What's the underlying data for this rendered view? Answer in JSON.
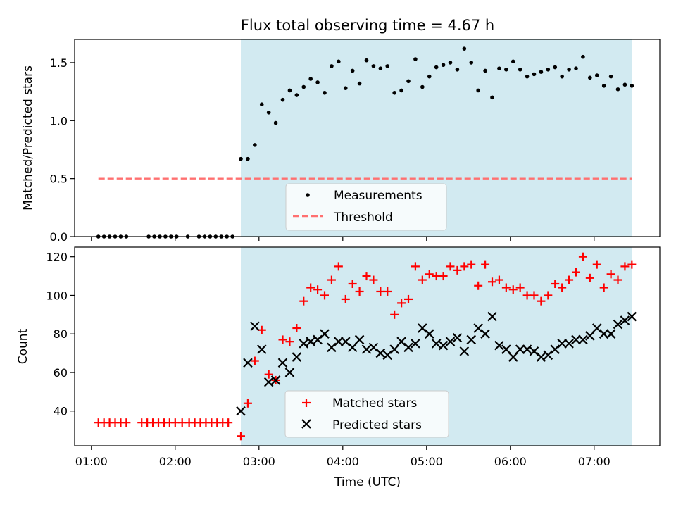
{
  "chart_data": [
    {
      "type": "scatter",
      "title": "Flux total observing time = 4.67 h",
      "xlabel": "",
      "ylabel": "Matched/Predicted stars",
      "ylim": [
        0,
        1.7
      ],
      "yticks": [
        "0.0",
        "0.5",
        "1.0",
        "1.5"
      ],
      "ytick_values": [
        0,
        0.5,
        1.0,
        1.5
      ],
      "observing_window": {
        "start": "02:47",
        "end": "07:27",
        "color": "#add8e6"
      },
      "legend": {
        "location": "lower-center",
        "entries": [
          "Measurements",
          "Threshold"
        ]
      },
      "threshold": {
        "name": "Threshold",
        "value": 0.5,
        "start": "01:05",
        "end": "07:27",
        "color": "#ff7070",
        "style": "dashed"
      },
      "series": [
        {
          "name": "Measurements",
          "color": "#000000",
          "x": [
            "01:05",
            "01:09",
            "01:13",
            "01:17",
            "01:21",
            "01:25",
            "01:41",
            "01:45",
            "01:49",
            "01:53",
            "01:57",
            "02:01",
            "02:09",
            "02:17",
            "02:21",
            "02:25",
            "02:29",
            "02:33",
            "02:37",
            "02:41",
            "02:47",
            "02:52",
            "02:57",
            "03:02",
            "03:07",
            "03:12",
            "03:17",
            "03:22",
            "03:27",
            "03:32",
            "03:37",
            "03:42",
            "03:47",
            "03:52",
            "03:57",
            "04:02",
            "04:07",
            "04:12",
            "04:17",
            "04:22",
            "04:27",
            "04:32",
            "04:37",
            "04:42",
            "04:47",
            "04:52",
            "04:57",
            "05:02",
            "05:07",
            "05:12",
            "05:17",
            "05:22",
            "05:27",
            "05:32",
            "05:37",
            "05:42",
            "05:47",
            "05:52",
            "05:57",
            "06:02",
            "06:07",
            "06:12",
            "06:17",
            "06:22",
            "06:27",
            "06:32",
            "06:37",
            "06:42",
            "06:47",
            "06:52",
            "06:57",
            "07:02",
            "07:07",
            "07:12",
            "07:17",
            "07:22",
            "07:27"
          ],
          "y": [
            0,
            0,
            0,
            0,
            0,
            0,
            0,
            0,
            0,
            0,
            0,
            0,
            0,
            0,
            0,
            0,
            0,
            0,
            0,
            0,
            0.67,
            0.67,
            0.79,
            1.14,
            1.07,
            0.98,
            1.18,
            1.26,
            1.22,
            1.29,
            1.36,
            1.33,
            1.24,
            1.47,
            1.51,
            1.28,
            1.43,
            1.32,
            1.52,
            1.47,
            1.45,
            1.47,
            1.24,
            1.26,
            1.34,
            1.53,
            1.29,
            1.38,
            1.46,
            1.48,
            1.5,
            1.44,
            1.62,
            1.5,
            1.26,
            1.43,
            1.2,
            1.45,
            1.44,
            1.51,
            1.44,
            1.38,
            1.4,
            1.42,
            1.44,
            1.46,
            1.38,
            1.44,
            1.45,
            1.55,
            1.37,
            1.39,
            1.3,
            1.38,
            1.27,
            1.31,
            1.3
          ]
        }
      ]
    },
    {
      "type": "scatter",
      "xlabel": "Time (UTC)",
      "ylabel": "Count",
      "ylim": [
        22,
        125
      ],
      "yticks": [
        "40",
        "60",
        "80",
        "100",
        "120"
      ],
      "ytick_values": [
        40,
        60,
        80,
        100,
        120
      ],
      "xlim": [
        "00:48",
        "07:47"
      ],
      "xticks": [
        "01:00",
        "02:00",
        "03:00",
        "04:00",
        "05:00",
        "06:00",
        "07:00"
      ],
      "observing_window": {
        "start": "02:47",
        "end": "07:27",
        "color": "#add8e6"
      },
      "legend": {
        "location": "lower-center",
        "entries": [
          "Matched stars",
          "Predicted stars"
        ]
      },
      "series": [
        {
          "name": "Matched stars",
          "marker": "plus",
          "color": "#ff0000",
          "x": [
            "01:05",
            "01:09",
            "01:13",
            "01:17",
            "01:21",
            "01:25",
            "01:36",
            "01:40",
            "01:44",
            "01:48",
            "01:52",
            "01:56",
            "02:00",
            "02:05",
            "02:10",
            "02:14",
            "02:18",
            "02:22",
            "02:26",
            "02:30",
            "02:34",
            "02:38",
            "02:47",
            "02:52",
            "02:57",
            "03:02",
            "03:07",
            "03:12",
            "03:17",
            "03:22",
            "03:27",
            "03:32",
            "03:37",
            "03:42",
            "03:47",
            "03:52",
            "03:57",
            "04:02",
            "04:07",
            "04:12",
            "04:17",
            "04:22",
            "04:27",
            "04:32",
            "04:37",
            "04:42",
            "04:47",
            "04:52",
            "04:57",
            "05:02",
            "05:07",
            "05:12",
            "05:17",
            "05:22",
            "05:27",
            "05:32",
            "05:37",
            "05:42",
            "05:47",
            "05:52",
            "05:57",
            "06:02",
            "06:07",
            "06:12",
            "06:17",
            "06:22",
            "06:27",
            "06:32",
            "06:37",
            "06:42",
            "06:47",
            "06:52",
            "06:57",
            "07:02",
            "07:07",
            "07:12",
            "07:17",
            "07:22",
            "07:27"
          ],
          "y": [
            34,
            34,
            34,
            34,
            34,
            34,
            34,
            34,
            34,
            34,
            34,
            34,
            34,
            34,
            34,
            34,
            34,
            34,
            34,
            34,
            34,
            34,
            27,
            44,
            66,
            82,
            59,
            56,
            77,
            76,
            83,
            97,
            104,
            103,
            100,
            108,
            115,
            98,
            106,
            102,
            110,
            108,
            102,
            102,
            90,
            96,
            98,
            115,
            108,
            111,
            110,
            110,
            115,
            113,
            115,
            116,
            105,
            116,
            107,
            108,
            104,
            103,
            104,
            100,
            100,
            97,
            100,
            106,
            104,
            108,
            112,
            120,
            109,
            116,
            104,
            111,
            108,
            115,
            116
          ]
        },
        {
          "name": "Predicted stars",
          "marker": "x",
          "color": "#000000",
          "x": [
            "02:47",
            "02:52",
            "02:57",
            "03:02",
            "03:07",
            "03:12",
            "03:17",
            "03:22",
            "03:27",
            "03:32",
            "03:37",
            "03:42",
            "03:47",
            "03:52",
            "03:57",
            "04:02",
            "04:07",
            "04:12",
            "04:17",
            "04:22",
            "04:27",
            "04:32",
            "04:37",
            "04:42",
            "04:47",
            "04:52",
            "04:57",
            "05:02",
            "05:07",
            "05:12",
            "05:17",
            "05:22",
            "05:27",
            "05:32",
            "05:37",
            "05:42",
            "05:47",
            "05:52",
            "05:57",
            "06:02",
            "06:07",
            "06:12",
            "06:17",
            "06:22",
            "06:27",
            "06:32",
            "06:37",
            "06:42",
            "06:47",
            "06:52",
            "06:57",
            "07:02",
            "07:07",
            "07:12",
            "07:17",
            "07:22",
            "07:27"
          ],
          "y": [
            40,
            65,
            84,
            72,
            55,
            56,
            65,
            60,
            68,
            75,
            76,
            77,
            80,
            73,
            76,
            76,
            73,
            77,
            72,
            73,
            70,
            69,
            72,
            76,
            73,
            75,
            83,
            80,
            75,
            74,
            76,
            78,
            71,
            77,
            83,
            80,
            89,
            74,
            72,
            68,
            72,
            72,
            71,
            68,
            69,
            72,
            75,
            75,
            77,
            77,
            79,
            83,
            80,
            80,
            85,
            87,
            89
          ]
        }
      ]
    }
  ]
}
